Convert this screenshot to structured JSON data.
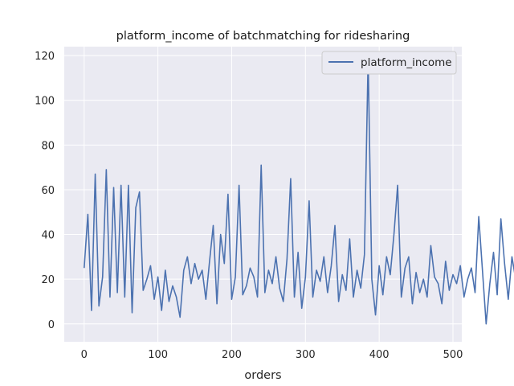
{
  "colors": {
    "plot_background": "#EAEAF2",
    "grid": "#FFFFFF",
    "line": "#4C72B0",
    "legend_border": "#CCCCCC"
  },
  "chart_data": {
    "type": "line",
    "title": "platform_income of batchmatching for ridesharing",
    "xlabel": "orders",
    "ylabel": "",
    "xlim": [
      -27,
      512
    ],
    "ylim": [
      -8,
      124
    ],
    "xticks": [
      0,
      100,
      200,
      300,
      400,
      500
    ],
    "yticks": [
      0,
      20,
      40,
      60,
      80,
      100,
      120
    ],
    "grid": true,
    "legend_position": "top-right",
    "series": [
      {
        "name": "platform_income",
        "x_start": 0,
        "x_step": 5,
        "values": [
          25,
          49,
          6,
          67,
          8,
          21,
          69,
          12,
          61,
          14,
          62,
          12,
          62,
          5,
          52,
          59,
          15,
          20,
          26,
          11,
          21,
          6,
          24,
          10,
          17,
          12,
          3,
          24,
          30,
          18,
          27,
          20,
          24,
          11,
          28,
          44,
          9,
          40,
          27,
          58,
          11,
          21,
          62,
          13,
          17,
          25,
          21,
          12,
          71,
          14,
          24,
          18,
          30,
          16,
          10,
          29,
          65,
          12,
          32,
          7,
          21,
          55,
          12,
          24,
          19,
          30,
          14,
          26,
          44,
          10,
          22,
          15,
          38,
          12,
          24,
          16,
          31,
          119,
          20,
          4,
          26,
          13,
          30,
          22,
          40,
          62,
          12,
          25,
          30,
          9,
          23,
          14,
          20,
          12,
          35,
          21,
          18,
          9,
          28,
          15,
          22,
          18,
          26,
          12,
          20,
          25,
          14,
          48,
          24,
          0,
          18,
          32,
          13,
          47,
          27,
          11,
          30,
          20,
          22,
          16,
          13,
          26,
          18,
          20,
          2,
          42,
          25,
          17,
          14,
          30,
          21,
          11,
          25,
          20,
          9,
          33,
          38,
          13,
          26,
          19,
          34,
          20,
          7,
          36,
          30,
          12,
          34,
          92,
          17,
          57,
          13,
          26,
          14,
          30,
          12,
          44,
          20,
          18,
          25,
          20,
          30,
          12,
          22,
          15,
          26,
          17,
          24,
          10,
          36,
          21,
          27,
          12,
          40,
          3,
          27,
          15,
          60,
          14,
          35,
          13,
          43,
          22,
          16,
          33,
          9,
          49,
          13,
          27,
          22,
          18,
          15,
          106,
          12,
          55,
          20,
          8,
          30,
          18,
          11,
          22,
          -1,
          38,
          18,
          47,
          8,
          48,
          13,
          32,
          19,
          13,
          24,
          10,
          19,
          20,
          38,
          26,
          10,
          30,
          22,
          18,
          12,
          20,
          46,
          18,
          23,
          23,
          17,
          12,
          9,
          28,
          10,
          18,
          14,
          25,
          20,
          10,
          19,
          23,
          8,
          18,
          13,
          26,
          20,
          18,
          14,
          10,
          16,
          17,
          10,
          15,
          11
        ]
      }
    ]
  }
}
